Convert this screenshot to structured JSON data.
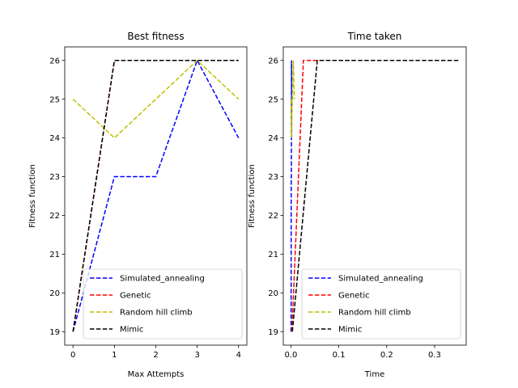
{
  "chart_data": [
    {
      "type": "line",
      "title": "Best fitness",
      "xlabel": "Max Attempts",
      "ylabel": "Fitness function",
      "xlim": [
        -0.2,
        4.2
      ],
      "ylim": [
        18.65,
        26.35
      ],
      "xticks": [
        0,
        1,
        2,
        3,
        4
      ],
      "xtick_labels": [
        "0",
        "1",
        "2",
        "3",
        "4"
      ],
      "yticks": [
        19,
        20,
        21,
        22,
        23,
        24,
        25,
        26
      ],
      "ytick_labels": [
        "19",
        "20",
        "21",
        "22",
        "23",
        "24",
        "25",
        "26"
      ],
      "grid": false,
      "legend_position": "lower right",
      "series": [
        {
          "name": "Simulated_annealing",
          "color": "#0000ff",
          "style": "dashed",
          "x": [
            0,
            1,
            2,
            3,
            4
          ],
          "y": [
            19,
            23,
            23,
            26,
            24
          ]
        },
        {
          "name": "Genetic",
          "color": "#ff0000",
          "style": "dashed",
          "x": [
            0,
            1,
            2,
            3,
            4
          ],
          "y": [
            19,
            26,
            26,
            26,
            26
          ]
        },
        {
          "name": "Random hill climb",
          "color": "#bfbf00",
          "style": "dashed",
          "x": [
            0,
            1,
            2,
            3,
            4
          ],
          "y": [
            25,
            24,
            25,
            26,
            25
          ]
        },
        {
          "name": "Mimic",
          "color": "#000000",
          "style": "dashed",
          "x": [
            0,
            1,
            2,
            3,
            4
          ],
          "y": [
            19,
            26,
            26,
            26,
            26
          ]
        }
      ]
    },
    {
      "type": "line",
      "title": "Time taken",
      "xlabel": "Time",
      "ylabel": "Fitness function",
      "xlim": [
        -0.016,
        0.366
      ],
      "ylim": [
        18.65,
        26.35
      ],
      "xticks": [
        0.0,
        0.1,
        0.2,
        0.3
      ],
      "xtick_labels": [
        "0.0",
        "0.1",
        "0.2",
        "0.3"
      ],
      "yticks": [
        19,
        20,
        21,
        22,
        23,
        24,
        25,
        26
      ],
      "ytick_labels": [
        "19",
        "20",
        "21",
        "22",
        "23",
        "24",
        "25",
        "26"
      ],
      "grid": false,
      "legend_position": "lower right",
      "series": [
        {
          "name": "Simulated_annealing",
          "color": "#0000ff",
          "style": "dashed",
          "x": [
            0.0003,
            0.0006,
            0.0009,
            0.0012,
            0.0015
          ],
          "y": [
            19,
            23,
            23,
            26,
            24
          ]
        },
        {
          "name": "Genetic",
          "color": "#ff0000",
          "style": "dashed",
          "x": [
            0.002,
            0.026,
            0.05,
            0.08,
            0.13
          ],
          "y": [
            19,
            26,
            26,
            26,
            26
          ]
        },
        {
          "name": "Random hill climb",
          "color": "#bfbf00",
          "style": "dashed",
          "x": [
            0.0003,
            0.0013,
            0.003,
            0.005,
            0.007
          ],
          "y": [
            25,
            24,
            25,
            26,
            25
          ]
        },
        {
          "name": "Mimic",
          "color": "#000000",
          "style": "dashed",
          "x": [
            0.003,
            0.055,
            0.12,
            0.22,
            0.35
          ],
          "y": [
            19,
            26,
            26,
            26,
            26
          ]
        }
      ]
    }
  ]
}
